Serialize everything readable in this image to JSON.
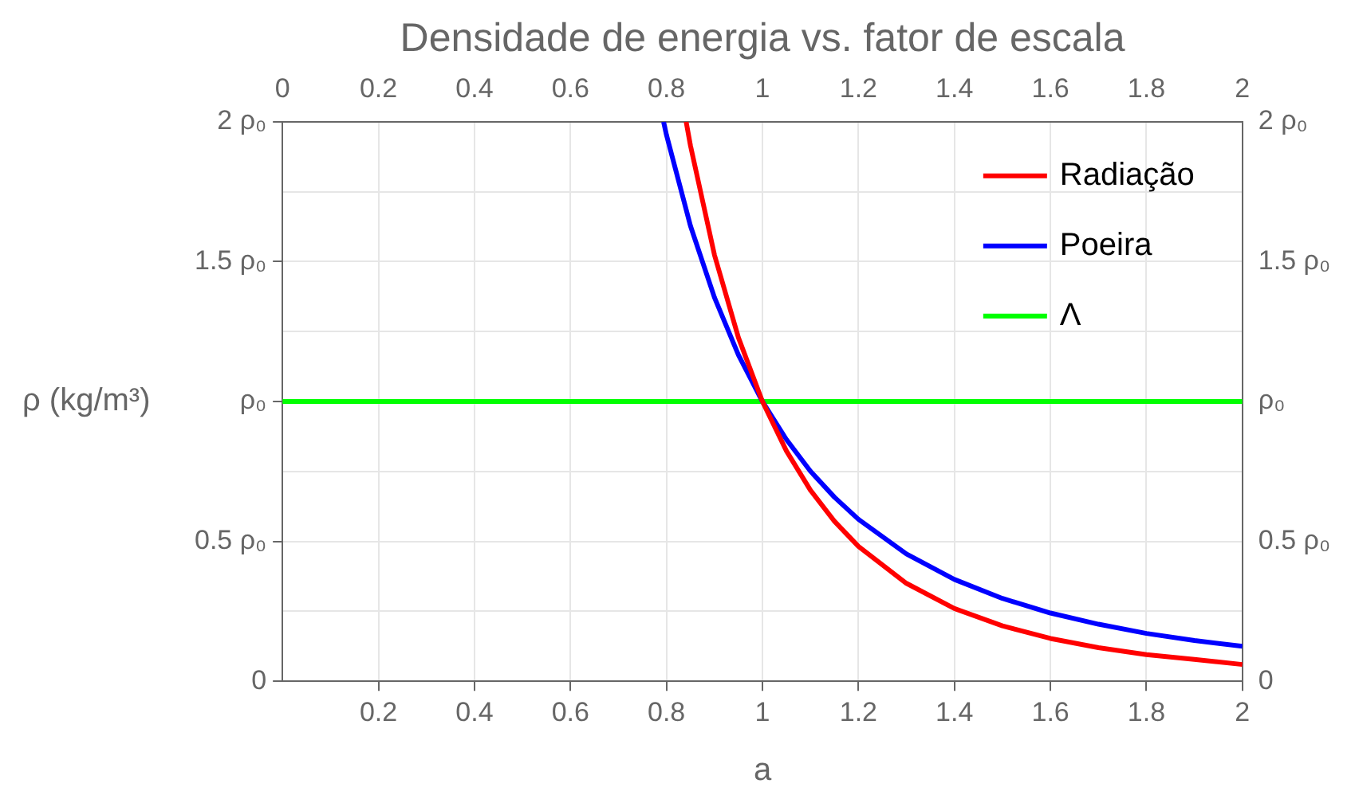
{
  "chart_data": {
    "type": "line",
    "title": "Densidade de energia vs. fator de escala",
    "xlabel": "a",
    "ylabel": "ρ (kg/m³)",
    "xlim": [
      0,
      2
    ],
    "xticks": [
      {
        "value": 0,
        "label": null
      },
      0.2,
      0.4,
      0.6,
      0.8,
      1,
      1.2,
      1.4,
      1.6,
      1.8,
      2
    ],
    "x2lim": [
      0,
      2
    ],
    "x2ticks": [
      0,
      0.2,
      0.4,
      0.6,
      0.8,
      1,
      1.2,
      1.4,
      1.6,
      1.8,
      2
    ],
    "ylim": [
      0,
      2
    ],
    "yticks": [
      0,
      {
        "value": 0.25,
        "label": null
      },
      {
        "value": 0.5,
        "label": "0.5 ρ₀"
      },
      {
        "value": 0.75,
        "label": null
      },
      {
        "value": 1,
        "label": "ρ₀"
      },
      {
        "value": 1.25,
        "label": null
      },
      {
        "value": 1.5,
        "label": "1.5 ρ₀"
      },
      {
        "value": 1.75,
        "label": null
      },
      {
        "value": 2,
        "label": "2 ρ₀"
      }
    ],
    "y2lim": [
      0,
      2
    ],
    "y2ticks": [
      0,
      {
        "value": 0.25,
        "label": null
      },
      {
        "value": 0.5,
        "label": "0.5 ρ₀"
      },
      {
        "value": 0.75,
        "label": null
      },
      {
        "value": 1,
        "label": "ρ₀"
      },
      {
        "value": 1.25,
        "label": null
      },
      {
        "value": 1.5,
        "label": "1.5 ρ₀"
      },
      {
        "value": 1.75,
        "label": null
      },
      {
        "value": 2,
        "label": "2 ρ₀"
      }
    ],
    "grid": true,
    "legend": "top right",
    "marker": "none",
    "line_style": "solid",
    "series": [
      {
        "name": "Radiação",
        "color": "#ff0000",
        "x": [
          0.841,
          0.85,
          0.9,
          0.95,
          1,
          1.05,
          1.1,
          1.15,
          1.2,
          1.3,
          1.4,
          1.5,
          1.6,
          1.7,
          1.8,
          1.9,
          2
        ],
        "values": [
          2,
          1.915,
          1.524,
          1.228,
          1,
          0.823,
          0.683,
          0.572,
          0.482,
          0.35,
          0.26,
          0.198,
          0.153,
          0.12,
          0.095,
          0.078,
          0.06
        ]
      },
      {
        "name": "Poeira",
        "color": "#0000ff",
        "x": [
          0.794,
          0.8,
          0.85,
          0.9,
          0.95,
          1,
          1.05,
          1.1,
          1.15,
          1.2,
          1.3,
          1.4,
          1.5,
          1.6,
          1.7,
          1.8,
          1.9,
          2
        ],
        "values": [
          2,
          1.953,
          1.628,
          1.372,
          1.166,
          1,
          0.864,
          0.751,
          0.658,
          0.579,
          0.455,
          0.364,
          0.296,
          0.244,
          0.204,
          0.171,
          0.146,
          0.125
        ]
      },
      {
        "name": "Λ",
        "color": "#00ff00",
        "x": [
          0,
          2
        ],
        "values": [
          1,
          1
        ]
      }
    ]
  }
}
